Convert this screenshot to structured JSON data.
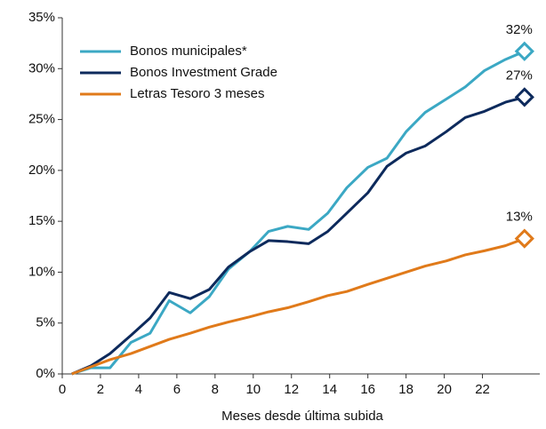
{
  "chart_data": {
    "type": "line",
    "xlabel": "Meses desde última subida",
    "x": [
      0.5,
      1.5,
      2.5,
      3.6,
      4.6,
      5.6,
      6.7,
      7.7,
      8.7,
      9.8,
      10.8,
      11.8,
      12.9,
      13.9,
      14.9,
      16,
      17,
      18,
      19,
      20.1,
      21.1,
      22.1,
      23.2,
      24.2
    ],
    "series": [
      {
        "name": "Bonos municipales*",
        "color": "#3ba8c4",
        "end_label": "32%",
        "values": [
          0,
          0.6,
          0.6,
          3.1,
          4,
          7.2,
          6,
          7.6,
          10.3,
          12,
          14,
          14.5,
          14.2,
          15.8,
          18.3,
          20.3,
          21.2,
          23.8,
          25.7,
          27,
          28.2,
          29.8,
          30.9,
          31.7
        ]
      },
      {
        "name": "Bonos Investment Grade",
        "color": "#0d2a5c",
        "end_label": "27%",
        "values": [
          0,
          0.8,
          2,
          3.8,
          5.5,
          8,
          7.4,
          8.3,
          10.5,
          12,
          13.1,
          13,
          12.8,
          14,
          15.8,
          17.8,
          20.4,
          21.7,
          22.4,
          23.8,
          25.2,
          25.8,
          26.7,
          27.2
        ]
      },
      {
        "name": "Letras Tesoro 3 meses",
        "color": "#e07a1a",
        "end_label": "13%",
        "values": [
          0,
          0.7,
          1.4,
          2,
          2.7,
          3.4,
          4,
          4.6,
          5.1,
          5.6,
          6.1,
          6.5,
          7.1,
          7.7,
          8.1,
          8.8,
          9.4,
          10,
          10.6,
          11.1,
          11.7,
          12.1,
          12.6,
          13.3
        ]
      }
    ],
    "xlim": [
      0,
      25
    ],
    "xticks": [
      0,
      2,
      4,
      6,
      8,
      10,
      12,
      14,
      16,
      18,
      20,
      22
    ],
    "ylim": [
      0,
      35
    ],
    "yticks": [
      {
        "value": 0,
        "label": "0%"
      },
      {
        "value": 5,
        "label": "5%"
      },
      {
        "value": 10,
        "label": "10%"
      },
      {
        "value": 15,
        "label": "15%"
      },
      {
        "value": 20,
        "label": "20%"
      },
      {
        "value": 25,
        "label": "25%"
      },
      {
        "value": 30,
        "label": "30%"
      },
      {
        "value": 35,
        "label": "35%"
      }
    ],
    "legend": "upper left"
  }
}
